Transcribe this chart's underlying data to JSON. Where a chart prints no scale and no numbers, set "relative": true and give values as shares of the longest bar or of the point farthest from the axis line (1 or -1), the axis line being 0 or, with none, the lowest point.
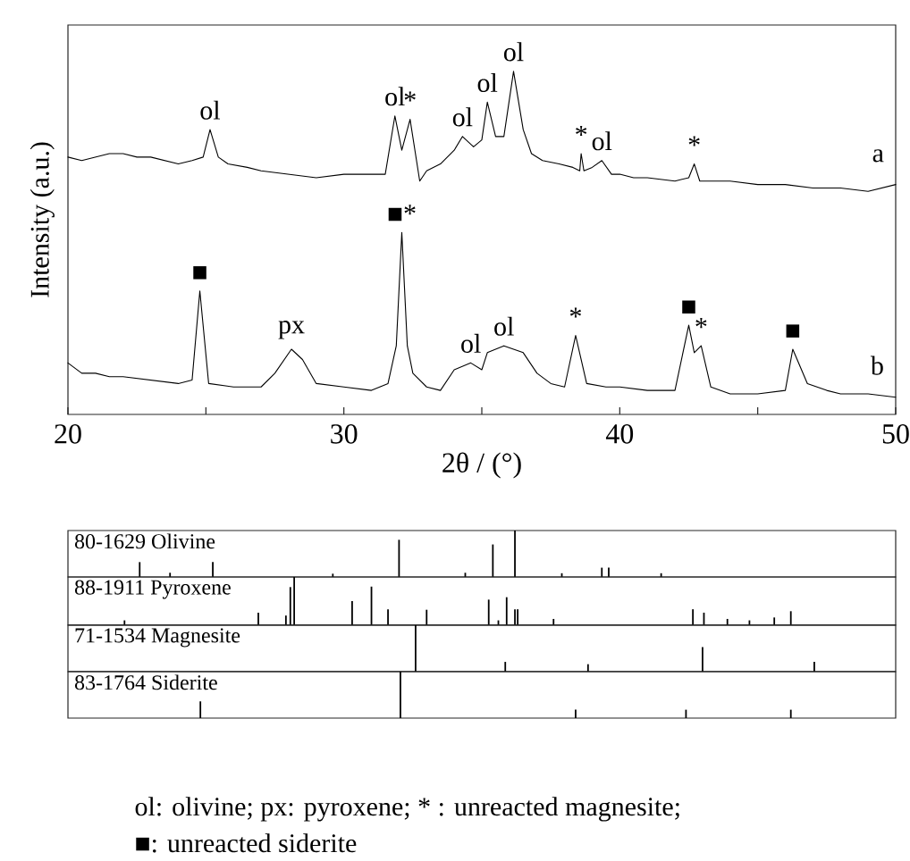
{
  "chart_data": [
    {
      "type": "line",
      "xlabel": "2θ / (°)",
      "ylabel": "Intensity (a.u.)",
      "xlim": [
        20,
        50
      ],
      "xticks": [
        20,
        {
          "value": 25,
          "label": null
        },
        30,
        {
          "value": 35,
          "label": null
        },
        40,
        {
          "value": 45,
          "label": null
        },
        50
      ],
      "relative": true,
      "tick_labels": "x",
      "series": [
        {
          "name": "a",
          "color": "#000000",
          "x": [
            20.0,
            20.5,
            21,
            21.5,
            22,
            22.5,
            23,
            23.5,
            24,
            24.5,
            24.9,
            25.15,
            25.45,
            25.8,
            26.5,
            27,
            28,
            29,
            30,
            31,
            31.5,
            31.85,
            32.1,
            32.4,
            32.75,
            33,
            33.5,
            34,
            34.3,
            34.7,
            35,
            35.2,
            35.5,
            35.8,
            36.15,
            36.5,
            36.8,
            37.2,
            37.8,
            38.3,
            38.55,
            38.6,
            38.7,
            39.0,
            39.35,
            39.7,
            40,
            40.5,
            41,
            42,
            42.5,
            42.7,
            42.9,
            43.5,
            44,
            45,
            46,
            47,
            48,
            49,
            49.5,
            50
          ],
          "values": [
            0.75,
            0.74,
            0.75,
            0.76,
            0.76,
            0.75,
            0.75,
            0.74,
            0.73,
            0.74,
            0.75,
            0.83,
            0.75,
            0.73,
            0.72,
            0.71,
            0.7,
            0.69,
            0.7,
            0.7,
            0.7,
            0.87,
            0.77,
            0.86,
            0.68,
            0.71,
            0.73,
            0.77,
            0.81,
            0.78,
            0.8,
            0.91,
            0.81,
            0.81,
            1.0,
            0.83,
            0.76,
            0.74,
            0.73,
            0.72,
            0.71,
            0.76,
            0.71,
            0.72,
            0.74,
            0.7,
            0.7,
            0.69,
            0.69,
            0.68,
            0.69,
            0.73,
            0.68,
            0.68,
            0.68,
            0.67,
            0.67,
            0.66,
            0.66,
            0.65,
            0.66,
            0.67
          ]
        },
        {
          "name": "b",
          "color": "#000000",
          "x": [
            20,
            20.5,
            21,
            21.5,
            22,
            23,
            24,
            24.5,
            24.78,
            25.1,
            26,
            27,
            27.5,
            28.1,
            28.5,
            29,
            30,
            31,
            31.6,
            31.9,
            32.1,
            32.3,
            32.5,
            33,
            33.5,
            34,
            34.6,
            35,
            35.2,
            35.8,
            36.5,
            37,
            37.5,
            38,
            38.4,
            38.8,
            39.5,
            40,
            41,
            42,
            42.5,
            42.7,
            42.95,
            43.3,
            44,
            45,
            46,
            46.27,
            46.8,
            47.5,
            48,
            49,
            50
          ],
          "values": [
            0.15,
            0.12,
            0.12,
            0.11,
            0.11,
            0.1,
            0.09,
            0.1,
            0.36,
            0.09,
            0.08,
            0.08,
            0.12,
            0.19,
            0.16,
            0.09,
            0.08,
            0.07,
            0.09,
            0.2,
            0.53,
            0.2,
            0.12,
            0.08,
            0.07,
            0.13,
            0.15,
            0.13,
            0.18,
            0.2,
            0.18,
            0.12,
            0.09,
            0.08,
            0.23,
            0.09,
            0.08,
            0.08,
            0.07,
            0.07,
            0.26,
            0.18,
            0.2,
            0.08,
            0.06,
            0.06,
            0.07,
            0.19,
            0.09,
            0.07,
            0.06,
            0.06,
            0.05
          ]
        }
      ],
      "annotations": [
        {
          "text": "ol",
          "x": 25.15,
          "y": 0.83
        },
        {
          "text": "ol",
          "x": 31.85,
          "y": 0.87
        },
        {
          "text": "*",
          "x": 32.4,
          "y": 0.86
        },
        {
          "text": "ol",
          "x": 34.3,
          "y": 0.81
        },
        {
          "text": "ol",
          "x": 35.2,
          "y": 0.91
        },
        {
          "text": "ol",
          "x": 36.15,
          "y": 1.0
        },
        {
          "text": "*",
          "x": 38.6,
          "y": 0.76
        },
        {
          "text": "ol",
          "x": 39.35,
          "y": 0.74
        },
        {
          "text": "*",
          "x": 42.7,
          "y": 0.73
        },
        {
          "text": "■",
          "x": 24.78,
          "y": 0.36
        },
        {
          "text": "px",
          "x": 28.1,
          "y": 0.19
        },
        {
          "text": "■*",
          "x": 32.1,
          "y": 0.53
        },
        {
          "text": "ol",
          "x": 34.6,
          "y": 0.15
        },
        {
          "text": "ol",
          "x": 35.8,
          "y": 0.2
        },
        {
          "text": "*",
          "x": 38.4,
          "y": 0.23
        },
        {
          "text": "■",
          "x": 42.5,
          "y": 0.26
        },
        {
          "text": "*",
          "x": 42.95,
          "y": 0.2
        },
        {
          "text": "■",
          "x": 46.27,
          "y": 0.19
        }
      ]
    },
    {
      "type": "bar",
      "title": "80-1629 Olivine",
      "xlim": [
        20,
        50
      ],
      "relative": true,
      "tick_labels": false,
      "color": "#000000",
      "x": [
        22.6,
        23.7,
        25.25,
        29.6,
        32.0,
        34.4,
        35.4,
        36.2,
        37.9,
        39.35,
        39.6,
        41.5
      ],
      "values": [
        0.32,
        0.09,
        0.32,
        0.07,
        0.8,
        0.09,
        0.7,
        1.0,
        0.08,
        0.2,
        0.2,
        0.08
      ]
    },
    {
      "type": "bar",
      "title": "88-1911 Pyroxene",
      "xlim": [
        20,
        50
      ],
      "relative": true,
      "tick_labels": false,
      "color": "#000000",
      "x": [
        22.05,
        26.9,
        27.9,
        28.06,
        28.2,
        30.3,
        31.0,
        31.6,
        33.0,
        35.25,
        35.6,
        35.9,
        36.2,
        36.3,
        37.6,
        42.65,
        43.05,
        43.9,
        44.7,
        45.6,
        46.2
      ],
      "values": [
        0.1,
        0.26,
        0.2,
        0.79,
        1.0,
        0.5,
        0.8,
        0.33,
        0.32,
        0.53,
        0.1,
        0.58,
        0.33,
        0.33,
        0.13,
        0.33,
        0.26,
        0.13,
        0.1,
        0.16,
        0.29
      ]
    },
    {
      "type": "bar",
      "title": "71-1534 Magnesite",
      "xlim": [
        20,
        50
      ],
      "relative": true,
      "tick_labels": false,
      "color": "#000000",
      "x": [
        32.6,
        35.85,
        38.85,
        43.0,
        47.05
      ],
      "values": [
        1.0,
        0.21,
        0.16,
        0.53,
        0.21
      ]
    },
    {
      "type": "bar",
      "title": "83-1764 Siderite",
      "xlim": [
        20,
        50
      ],
      "relative": true,
      "tick_labels": false,
      "color": "#000000",
      "x": [
        24.8,
        32.05,
        38.4,
        42.4,
        46.2
      ],
      "values": [
        0.36,
        1.0,
        0.18,
        0.18,
        0.18
      ],
      "annotations": [
        "ol: olivine; px: pyroxene; * : unreacted magnesite;",
        "■: unreacted siderite"
      ]
    }
  ]
}
